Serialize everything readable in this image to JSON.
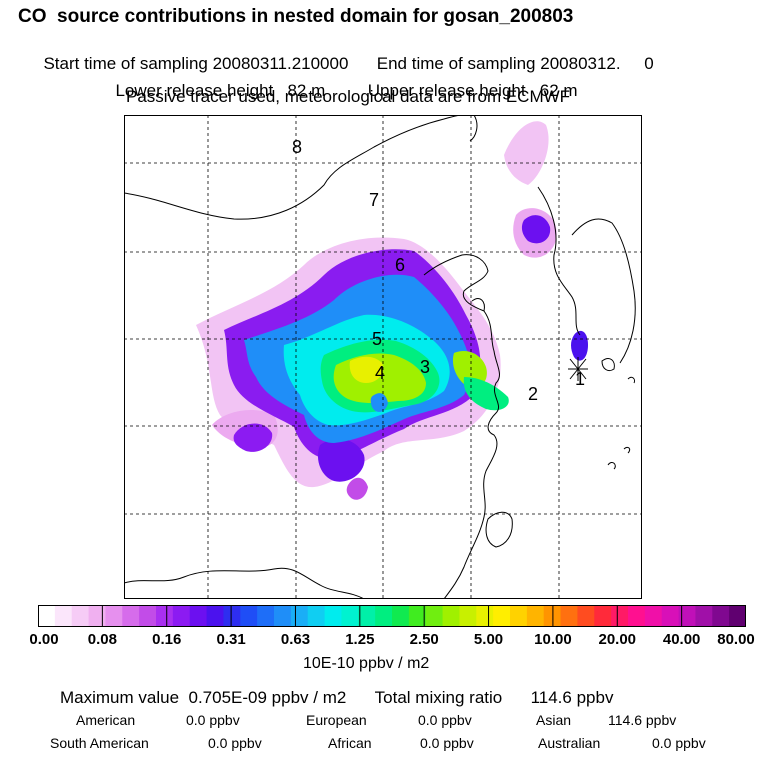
{
  "title": "CO  source contributions in nested domain for gosan_200803",
  "sampling": {
    "start_label": "Start time of sampling",
    "start_value": "20080311.210000",
    "end_label": "End time of sampling",
    "end_value": "20080312.",
    "end_suffix": "0"
  },
  "release": {
    "lower_label": "Lower release height",
    "lower_value": "82 m",
    "upper_label": "Upper release height",
    "upper_value": "62 m"
  },
  "note": "Passive tracer used, meteorological data are from ECMWF",
  "map": {
    "region_labels": [
      "8",
      "7",
      "6",
      "5",
      "4",
      "3",
      "2",
      "1"
    ],
    "receptor_marker": "star-receptor"
  },
  "colorbar": {
    "ticks": [
      "0.00",
      "0.08",
      "0.16",
      "0.31",
      "0.63",
      "1.25",
      "2.50",
      "5.00",
      "10.00",
      "20.00",
      "40.00",
      "80.00"
    ],
    "units": "10E-10 ppbv / m2",
    "colors": [
      "#ffffff",
      "#fbe6fb",
      "#f6ccf6",
      "#f0b0f0",
      "#e690ee",
      "#d66ceb",
      "#c24ce8",
      "#a92ff0",
      "#8c1bf2",
      "#6c10f0",
      "#4b12ee",
      "#2e2ef0",
      "#1f4ef6",
      "#1e6ef8",
      "#1f8ef8",
      "#1aaef6",
      "#10cef2",
      "#00ecee",
      "#00f2d0",
      "#00f0a8",
      "#00ee80",
      "#10ea50",
      "#40ec20",
      "#70ee10",
      "#a0f000",
      "#c8f000",
      "#e8f000",
      "#ffee00",
      "#ffd200",
      "#ffb400",
      "#ff9400",
      "#ff7010",
      "#ff4c20",
      "#ff2a3a",
      "#ff1a66",
      "#ff1090",
      "#f010a8",
      "#d810b8",
      "#c010b8",
      "#a010a8",
      "#800890",
      "#600070"
    ]
  },
  "summary": {
    "max_label": "Maximum value",
    "max_value": "0.705E-09 ppbv / m2",
    "total_label": "Total mixing ratio",
    "total_value": "114.6 ppbv",
    "regions": [
      {
        "name": "American",
        "value": "0.0 ppbv"
      },
      {
        "name": "European",
        "value": "0.0 ppbv"
      },
      {
        "name": "Asian",
        "value": "114.6 ppbv"
      },
      {
        "name": "South American",
        "value": "0.0 ppbv"
      },
      {
        "name": "African",
        "value": "0.0 ppbv"
      },
      {
        "name": "Australian",
        "value": "0.0 ppbv"
      }
    ]
  }
}
